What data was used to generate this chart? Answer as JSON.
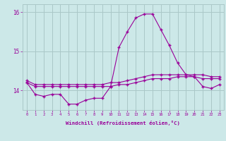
{
  "xlabel": "Windchill (Refroidissement éolien,°C)",
  "background_color": "#cce8e8",
  "grid_color": "#aac8c8",
  "line_color": "#990099",
  "x_hours": [
    0,
    1,
    2,
    3,
    4,
    5,
    6,
    7,
    8,
    9,
    10,
    11,
    12,
    13,
    14,
    15,
    16,
    17,
    18,
    19,
    20,
    21,
    22,
    23
  ],
  "windchill": [
    14.2,
    13.9,
    13.85,
    13.9,
    13.9,
    13.65,
    13.65,
    13.75,
    13.8,
    13.8,
    14.1,
    15.1,
    15.5,
    15.85,
    15.95,
    15.95,
    15.55,
    15.15,
    14.7,
    14.4,
    14.35,
    14.1,
    14.05,
    14.15
  ],
  "temperature": [
    14.25,
    14.15,
    14.15,
    14.15,
    14.15,
    14.15,
    14.15,
    14.15,
    14.15,
    14.15,
    14.2,
    14.2,
    14.25,
    14.3,
    14.35,
    14.4,
    14.4,
    14.4,
    14.4,
    14.4,
    14.4,
    14.4,
    14.35,
    14.35
  ],
  "apparent": [
    14.2,
    14.1,
    14.1,
    14.1,
    14.1,
    14.1,
    14.1,
    14.1,
    14.1,
    14.1,
    14.1,
    14.15,
    14.15,
    14.2,
    14.25,
    14.3,
    14.3,
    14.3,
    14.35,
    14.35,
    14.35,
    14.3,
    14.3,
    14.3
  ],
  "ylim_min": 13.5,
  "ylim_max": 16.2,
  "yticks": [
    14,
    15,
    16
  ],
  "ytick_labels": [
    "14",
    "15",
    "16"
  ]
}
